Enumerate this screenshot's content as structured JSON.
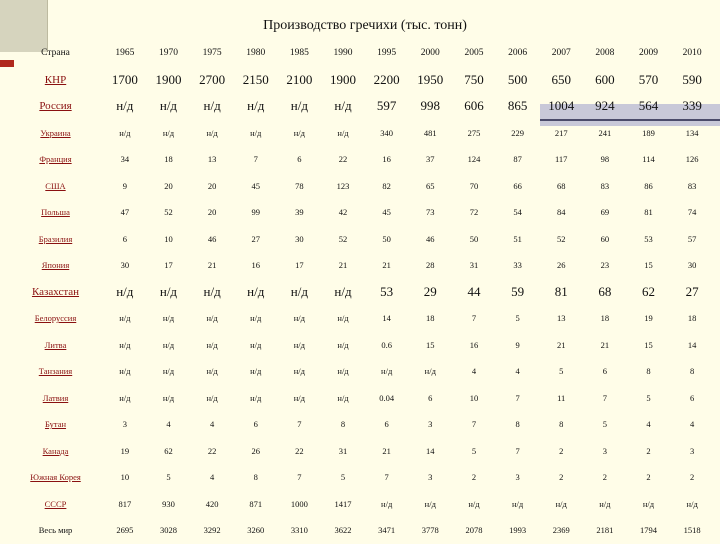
{
  "title": "Производство гречихи (тыс. тонн)",
  "header": {
    "country_label": "Страна",
    "years": [
      "1965",
      "1970",
      "1975",
      "1980",
      "1985",
      "1990",
      "1995",
      "2000",
      "2005",
      "2006",
      "2007",
      "2008",
      "2009",
      "2010"
    ]
  },
  "rows": [
    {
      "country": "КНР",
      "size": "big",
      "values": [
        "1700",
        "1900",
        "2700",
        "2150",
        "2100",
        "1900",
        "2200",
        "1950",
        "750",
        "500",
        "650",
        "600",
        "570",
        "590"
      ]
    },
    {
      "country": "Россия",
      "size": "big",
      "values": [
        "н/д",
        "н/д",
        "н/д",
        "н/д",
        "н/д",
        "н/д",
        "597",
        "998",
        "606",
        "865",
        "1004",
        "924",
        "564",
        "339"
      ]
    },
    {
      "country": "Украина",
      "size": "small",
      "values": [
        "н/д",
        "н/д",
        "н/д",
        "н/д",
        "н/д",
        "н/д",
        "340",
        "481",
        "275",
        "229",
        "217",
        "241",
        "189",
        "134"
      ]
    },
    {
      "country": "Франция",
      "size": "small",
      "values": [
        "34",
        "18",
        "13",
        "7",
        "6",
        "22",
        "16",
        "37",
        "124",
        "87",
        "117",
        "98",
        "114",
        "126"
      ]
    },
    {
      "country": "США",
      "size": "small",
      "values": [
        "9",
        "20",
        "20",
        "45",
        "78",
        "123",
        "82",
        "65",
        "70",
        "66",
        "68",
        "83",
        "86",
        "83"
      ]
    },
    {
      "country": "Польша",
      "size": "small",
      "values": [
        "47",
        "52",
        "20",
        "99",
        "39",
        "42",
        "45",
        "73",
        "72",
        "54",
        "84",
        "69",
        "81",
        "74"
      ]
    },
    {
      "country": "Бразилия",
      "size": "small",
      "values": [
        "6",
        "10",
        "46",
        "27",
        "30",
        "52",
        "50",
        "46",
        "50",
        "51",
        "52",
        "60",
        "53",
        "57"
      ]
    },
    {
      "country": "Япония",
      "size": "small",
      "values": [
        "30",
        "17",
        "21",
        "16",
        "17",
        "21",
        "21",
        "28",
        "31",
        "33",
        "26",
        "23",
        "15",
        "30"
      ]
    },
    {
      "country": "Казахстан",
      "size": "big",
      "values": [
        "н/д",
        "н/д",
        "н/д",
        "н/д",
        "н/д",
        "н/д",
        "53",
        "29",
        "44",
        "59",
        "81",
        "68",
        "62",
        "27"
      ]
    },
    {
      "country": "Белоруссия",
      "size": "small",
      "values": [
        "н/д",
        "н/д",
        "н/д",
        "н/д",
        "н/д",
        "н/д",
        "14",
        "18",
        "7",
        "5",
        "13",
        "18",
        "19",
        "18"
      ]
    },
    {
      "country": "Литва",
      "size": "small",
      "values": [
        "н/д",
        "н/д",
        "н/д",
        "н/д",
        "н/д",
        "н/д",
        "0.6",
        "15",
        "16",
        "9",
        "21",
        "21",
        "15",
        "14"
      ]
    },
    {
      "country": "Танзания",
      "size": "small",
      "values": [
        "н/д",
        "н/д",
        "н/д",
        "н/д",
        "н/д",
        "н/д",
        "н/д",
        "н/д",
        "4",
        "4",
        "5",
        "6",
        "8",
        "8"
      ]
    },
    {
      "country": "Латвия",
      "size": "small",
      "values": [
        "н/д",
        "н/д",
        "н/д",
        "н/д",
        "н/д",
        "н/д",
        "0.04",
        "6",
        "10",
        "7",
        "11",
        "7",
        "5",
        "6"
      ]
    },
    {
      "country": "Бутан",
      "size": "small",
      "values": [
        "3",
        "4",
        "4",
        "6",
        "7",
        "8",
        "6",
        "3",
        "7",
        "8",
        "8",
        "5",
        "4",
        "4"
      ]
    },
    {
      "country": "Канада",
      "size": "small",
      "values": [
        "19",
        "62",
        "22",
        "26",
        "22",
        "31",
        "21",
        "14",
        "5",
        "7",
        "2",
        "3",
        "2",
        "3"
      ]
    },
    {
      "country": "Южная Корея",
      "size": "small",
      "values": [
        "10",
        "5",
        "4",
        "8",
        "7",
        "5",
        "7",
        "3",
        "2",
        "3",
        "2",
        "2",
        "2",
        "2"
      ]
    },
    {
      "country": "СССР",
      "size": "small",
      "values": [
        "817",
        "930",
        "420",
        "871",
        "1000",
        "1417",
        "н/д",
        "н/д",
        "н/д",
        "н/д",
        "н/д",
        "н/д",
        "н/д",
        "н/д"
      ]
    },
    {
      "country": "Весь мир",
      "size": "small",
      "world": true,
      "values": [
        "2695",
        "3028",
        "3292",
        "3260",
        "3310",
        "3622",
        "3471",
        "3778",
        "2078",
        "1993",
        "2369",
        "2181",
        "1794",
        "1518"
      ]
    }
  ]
}
